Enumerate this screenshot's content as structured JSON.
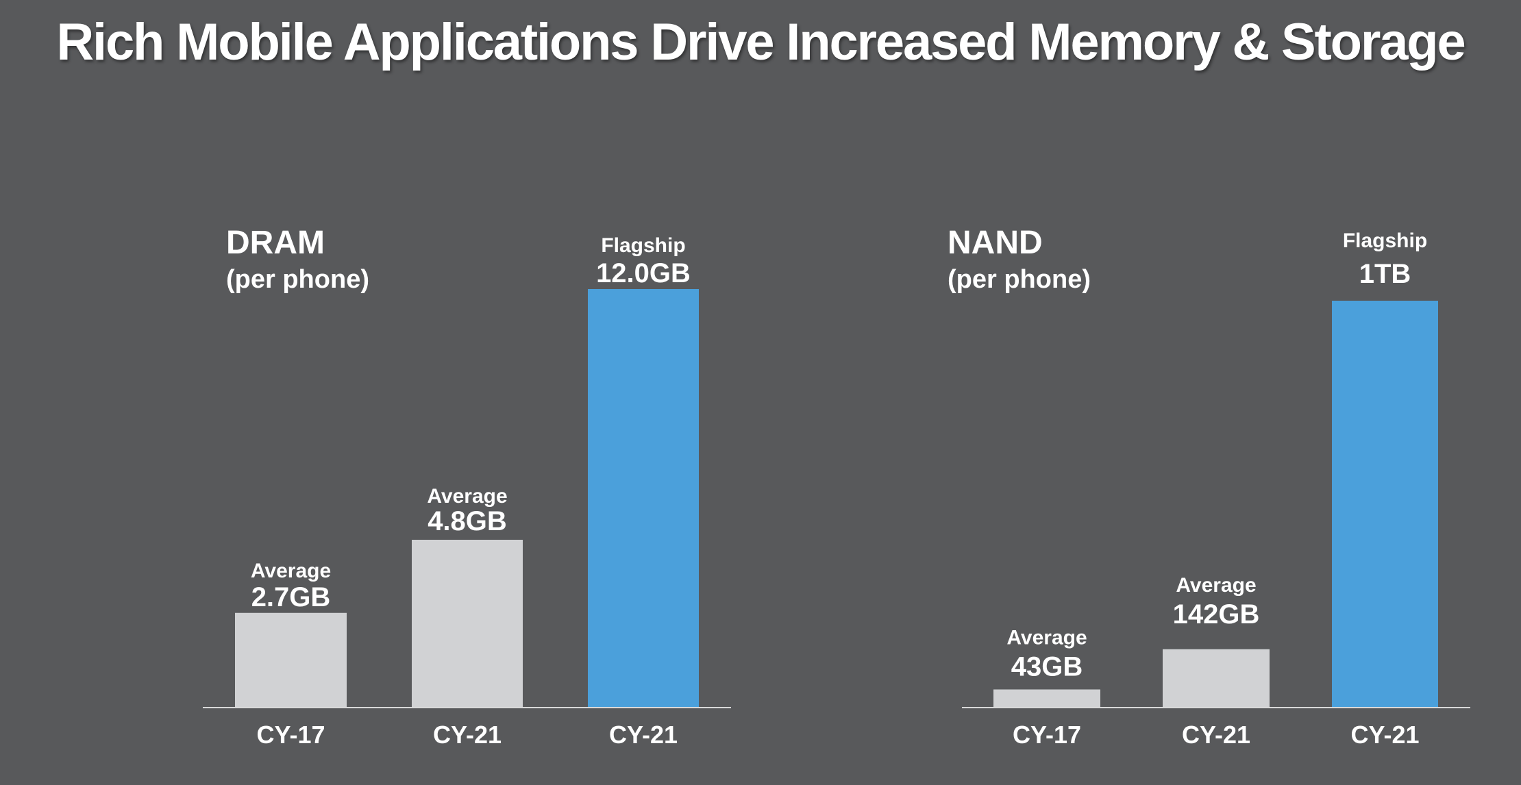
{
  "title": "Rich Mobile Applications Drive Increased Memory & Storage",
  "colors": {
    "background": "#58595b",
    "average_bar": "#d1d2d4",
    "flagship_bar": "#4ba0db",
    "text": "#ffffff",
    "axis": "#d9d9d9"
  },
  "chart_data": [
    {
      "type": "bar",
      "title": "DRAM",
      "subtitle": "(per phone)",
      "categories": [
        "CY-17",
        "CY-21",
        "CY-21"
      ],
      "bar_kind": [
        "Average",
        "Average",
        "Flagship"
      ],
      "value_labels": [
        "2.7GB",
        "4.8GB",
        "12.0GB"
      ],
      "values": [
        2.7,
        4.8,
        12.0
      ],
      "unit": "GB",
      "grid": false
    },
    {
      "type": "bar",
      "title": "NAND",
      "subtitle": "(per phone)",
      "categories": [
        "CY-17",
        "CY-21",
        "CY-21"
      ],
      "bar_kind": [
        "Average",
        "Average",
        "Flagship"
      ],
      "value_labels": [
        "43GB",
        "142GB",
        "1TB"
      ],
      "values": [
        43,
        142,
        1000
      ],
      "unit": "GB",
      "grid": false
    }
  ]
}
